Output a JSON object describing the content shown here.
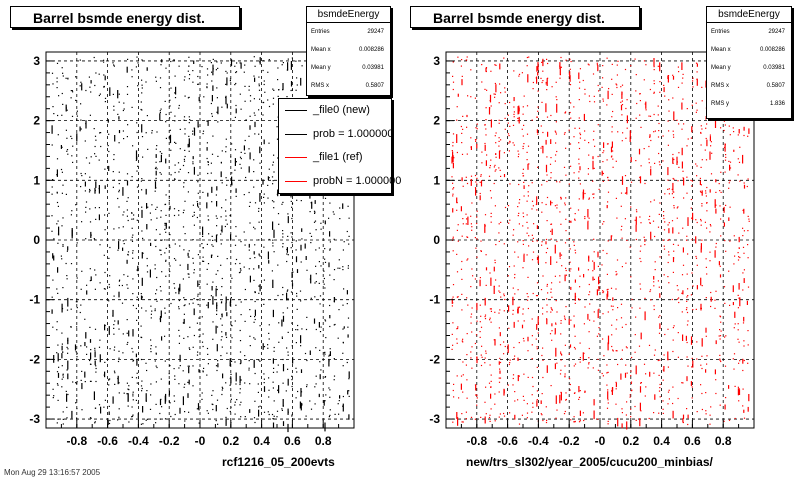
{
  "chart_data": [
    {
      "type": "scatter",
      "title": "Barrel bsmde energy dist.",
      "xlabel": "rcf1216_05_200evts",
      "ylabel": "",
      "xlim": [
        -1.0,
        1.0
      ],
      "ylim": [
        -3.15,
        3.15
      ],
      "x_ticks": [
        "-0.8",
        "-0.6",
        "-0.4",
        "-0.2",
        "-0",
        "0.2",
        "0.4",
        "0.6",
        "0.8"
      ],
      "y_ticks": [
        "3",
        "2",
        "1",
        "0",
        "-1",
        "-2",
        "-3"
      ],
      "grid": true,
      "marker_color": "#000000",
      "stats": {
        "name": "bsmdeEnergy",
        "entries_label": "Entries",
        "entries": "29247",
        "mean_x_label": "Mean x",
        "mean_x": "0.008286",
        "mean_y_label": "Mean y",
        "mean_y": "0.03981",
        "rms_x_label": "RMS x",
        "rms_x": "0.5807"
      },
      "legend": {
        "placement": "top-right",
        "entries": [
          {
            "label": "_file0 (new)",
            "color": "#000000"
          },
          {
            "label": "prob = 1.000000",
            "color": "#000000"
          },
          {
            "label": "_file1 (ref)",
            "color": "#ff0000"
          },
          {
            "label": "probN = 1.000000",
            "color": "#ff0000"
          }
        ]
      }
    },
    {
      "type": "scatter",
      "title": "Barrel bsmde energy dist.",
      "xlabel": "new/trs_sl302/year_2005/cucu200_minbias/",
      "ylabel": "",
      "xlim": [
        -1.0,
        1.0
      ],
      "ylim": [
        -3.15,
        3.15
      ],
      "x_ticks": [
        "-0.8",
        "-0.6",
        "-0.4",
        "-0.2",
        "-0",
        "0.2",
        "0.4",
        "0.6",
        "0.8"
      ],
      "y_ticks": [
        "3",
        "2",
        "1",
        "0",
        "-1",
        "-2",
        "-3"
      ],
      "grid": true,
      "marker_color": "#ff0000",
      "stats": {
        "name": "bsmdeEnergy",
        "entries_label": "Entries",
        "entries": "29247",
        "mean_x_label": "Mean x",
        "mean_x": "0.008286",
        "mean_y_label": "Mean y",
        "mean_y": "0.03981",
        "rms_x_label": "RMS x",
        "rms_x": "0.5807",
        "rms_y_label": "RMS y",
        "rms_y": "1.836"
      }
    }
  ],
  "footer": {
    "date_text": "Mon Aug 29 13:16:57 2005"
  }
}
